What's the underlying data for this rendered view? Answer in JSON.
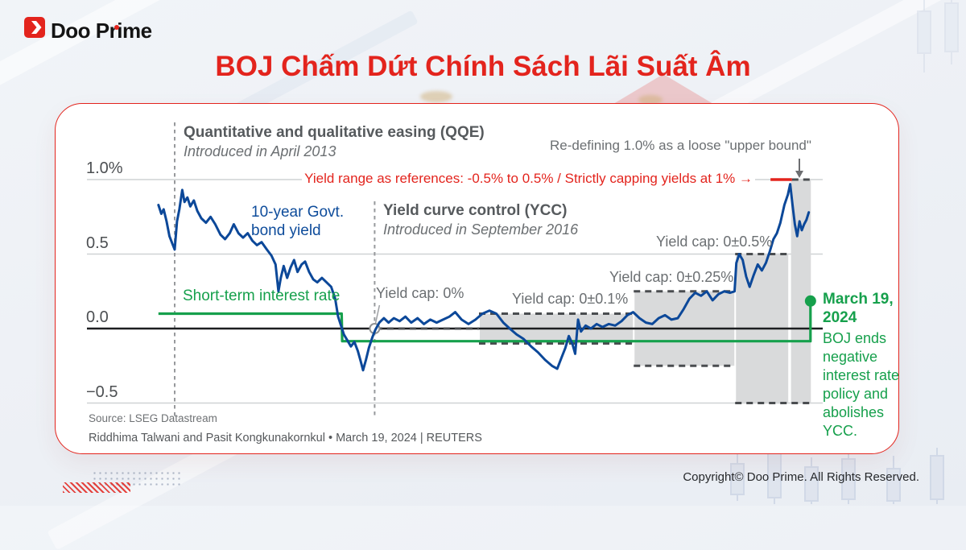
{
  "brand": {
    "logo_text": "Doo Prime",
    "accent_red": "#e3241d"
  },
  "title": "BOJ Chấm Dứt Chính Sách Lãi Suất Âm",
  "footer": {
    "copyright": "Copyright© Doo Prime. All Rights Reserved."
  },
  "chart_data": {
    "type": "line",
    "title": "",
    "ylabel": "%",
    "ylim": [
      -0.72,
      1.08
    ],
    "x_range_years": [
      2012.95,
      2024.3
    ],
    "grid": "horizontal",
    "legend_position": "inline-labels",
    "yticks": [
      {
        "label": "1.0%",
        "value": 1.0
      },
      {
        "label": "0.5",
        "value": 0.5
      },
      {
        "label": "0.0",
        "value": 0.0
      },
      {
        "label": "−0.5",
        "value": -0.5
      }
    ],
    "events": [
      {
        "title": "Quantitative and qualitative easing (QQE)",
        "subtitle": "Introduced in April 2013",
        "year": 2013.25
      },
      {
        "title": "Yield curve control (YCC)",
        "subtitle": "Introduced in September 2016",
        "year": 2016.7
      }
    ],
    "bands": [
      {
        "label": "Yield cap: 0%",
        "from_year": 2016.72,
        "to_year": 2018.5,
        "top": 0,
        "bottom": 0,
        "fill": false
      },
      {
        "label": "Yield cap: 0±0.1%",
        "from_year": 2018.5,
        "to_year": 2021.17,
        "top": 0.1,
        "bottom": -0.1,
        "fill": true
      },
      {
        "label": "Yield cap: 0±0.25%",
        "from_year": 2021.17,
        "to_year": 2022.92,
        "top": 0.25,
        "bottom": -0.25,
        "fill": true
      },
      {
        "label": "Yield cap: 0±0.5%",
        "from_year": 2022.92,
        "to_year": 2023.85,
        "top": 0.5,
        "bottom": -0.5,
        "fill": true
      },
      {
        "label": "",
        "from_year": 2023.87,
        "to_year": 2024.24,
        "top": 1.0,
        "bottom": -0.5,
        "fill": true
      }
    ],
    "cap_dashes": [
      {
        "y": 0,
        "from": 2016.72,
        "to": 2018.5
      },
      {
        "y": 0.1,
        "from": 2018.5,
        "to": 2021.17
      },
      {
        "y": -0.1,
        "from": 2018.5,
        "to": 2021.17
      },
      {
        "y": 0.25,
        "from": 2021.17,
        "to": 2022.92
      },
      {
        "y": -0.25,
        "from": 2021.17,
        "to": 2022.92
      },
      {
        "y": 0.5,
        "from": 2022.92,
        "to": 2023.85
      },
      {
        "y": -0.5,
        "from": 2022.92,
        "to": 2024.24
      },
      {
        "y": 1.0,
        "from": 2023.9,
        "to": 2024.24
      }
    ],
    "strict_cap_line": {
      "y": 1.0,
      "from": 2023.53,
      "to": 2023.9,
      "color": "#e3241d"
    },
    "markers": {
      "ycc_zero_circle": {
        "year": 2016.7,
        "pct": 0.0
      }
    },
    "series": [
      {
        "name": "10-year Govt. bond yield",
        "label": "10-year Govt.\nbond yield",
        "color": "#0c4899",
        "points": [
          [
            2012.97,
            0.83
          ],
          [
            2013.02,
            0.77
          ],
          [
            2013.06,
            0.8
          ],
          [
            2013.11,
            0.72
          ],
          [
            2013.16,
            0.62
          ],
          [
            2013.21,
            0.57
          ],
          [
            2013.25,
            0.53
          ],
          [
            2013.29,
            0.72
          ],
          [
            2013.33,
            0.8
          ],
          [
            2013.38,
            0.93
          ],
          [
            2013.42,
            0.85
          ],
          [
            2013.47,
            0.88
          ],
          [
            2013.52,
            0.82
          ],
          [
            2013.58,
            0.86
          ],
          [
            2013.64,
            0.79
          ],
          [
            2013.71,
            0.74
          ],
          [
            2013.79,
            0.71
          ],
          [
            2013.87,
            0.75
          ],
          [
            2013.95,
            0.7
          ],
          [
            2014.04,
            0.63
          ],
          [
            2014.12,
            0.6
          ],
          [
            2014.2,
            0.64
          ],
          [
            2014.27,
            0.7
          ],
          [
            2014.35,
            0.64
          ],
          [
            2014.43,
            0.61
          ],
          [
            2014.51,
            0.64
          ],
          [
            2014.59,
            0.59
          ],
          [
            2014.67,
            0.56
          ],
          [
            2014.75,
            0.58
          ],
          [
            2014.84,
            0.53
          ],
          [
            2014.92,
            0.49
          ],
          [
            2014.99,
            0.43
          ],
          [
            2015.04,
            0.25
          ],
          [
            2015.08,
            0.34
          ],
          [
            2015.13,
            0.42
          ],
          [
            2015.19,
            0.34
          ],
          [
            2015.25,
            0.41
          ],
          [
            2015.31,
            0.46
          ],
          [
            2015.37,
            0.38
          ],
          [
            2015.44,
            0.43
          ],
          [
            2015.5,
            0.45
          ],
          [
            2015.57,
            0.38
          ],
          [
            2015.64,
            0.33
          ],
          [
            2015.71,
            0.31
          ],
          [
            2015.79,
            0.34
          ],
          [
            2015.87,
            0.31
          ],
          [
            2015.95,
            0.28
          ],
          [
            2016.02,
            0.2
          ],
          [
            2016.07,
            0.08
          ],
          [
            2016.12,
            0.02
          ],
          [
            2016.17,
            -0.04
          ],
          [
            2016.23,
            -0.08
          ],
          [
            2016.29,
            -0.12
          ],
          [
            2016.35,
            -0.09
          ],
          [
            2016.41,
            -0.15
          ],
          [
            2016.46,
            -0.22
          ],
          [
            2016.5,
            -0.28
          ],
          [
            2016.55,
            -0.21
          ],
          [
            2016.6,
            -0.13
          ],
          [
            2016.66,
            -0.06
          ],
          [
            2016.71,
            -0.01
          ],
          [
            2016.78,
            0.04
          ],
          [
            2016.86,
            0.07
          ],
          [
            2016.94,
            0.04
          ],
          [
            2017.03,
            0.07
          ],
          [
            2017.13,
            0.05
          ],
          [
            2017.23,
            0.08
          ],
          [
            2017.33,
            0.04
          ],
          [
            2017.44,
            0.07
          ],
          [
            2017.55,
            0.03
          ],
          [
            2017.66,
            0.06
          ],
          [
            2017.77,
            0.04
          ],
          [
            2017.88,
            0.06
          ],
          [
            2017.99,
            0.08
          ],
          [
            2018.09,
            0.11
          ],
          [
            2018.2,
            0.06
          ],
          [
            2018.32,
            0.03
          ],
          [
            2018.44,
            0.06
          ],
          [
            2018.56,
            0.1
          ],
          [
            2018.68,
            0.12
          ],
          [
            2018.8,
            0.1
          ],
          [
            2018.92,
            0.04
          ],
          [
            2019.03,
            0.0
          ],
          [
            2019.15,
            -0.04
          ],
          [
            2019.27,
            -0.07
          ],
          [
            2019.4,
            -0.12
          ],
          [
            2019.52,
            -0.16
          ],
          [
            2019.64,
            -0.21
          ],
          [
            2019.76,
            -0.25
          ],
          [
            2019.85,
            -0.27
          ],
          [
            2019.92,
            -0.2
          ],
          [
            2019.99,
            -0.13
          ],
          [
            2020.05,
            -0.05
          ],
          [
            2020.11,
            -0.1
          ],
          [
            2020.16,
            -0.17
          ],
          [
            2020.21,
            0.06
          ],
          [
            2020.26,
            -0.02
          ],
          [
            2020.34,
            0.02
          ],
          [
            2020.43,
            0.0
          ],
          [
            2020.53,
            0.03
          ],
          [
            2020.63,
            0.01
          ],
          [
            2020.74,
            0.03
          ],
          [
            2020.85,
            0.02
          ],
          [
            2020.96,
            0.05
          ],
          [
            2021.06,
            0.09
          ],
          [
            2021.16,
            0.11
          ],
          [
            2021.27,
            0.07
          ],
          [
            2021.38,
            0.04
          ],
          [
            2021.49,
            0.03
          ],
          [
            2021.6,
            0.07
          ],
          [
            2021.71,
            0.09
          ],
          [
            2021.82,
            0.06
          ],
          [
            2021.93,
            0.07
          ],
          [
            2022.03,
            0.13
          ],
          [
            2022.13,
            0.2
          ],
          [
            2022.23,
            0.24
          ],
          [
            2022.33,
            0.22
          ],
          [
            2022.43,
            0.25
          ],
          [
            2022.53,
            0.19
          ],
          [
            2022.63,
            0.23
          ],
          [
            2022.73,
            0.25
          ],
          [
            2022.83,
            0.24
          ],
          [
            2022.91,
            0.25
          ],
          [
            2022.94,
            0.44
          ],
          [
            2022.99,
            0.5
          ],
          [
            2023.05,
            0.46
          ],
          [
            2023.11,
            0.35
          ],
          [
            2023.17,
            0.28
          ],
          [
            2023.24,
            0.36
          ],
          [
            2023.31,
            0.43
          ],
          [
            2023.38,
            0.39
          ],
          [
            2023.45,
            0.44
          ],
          [
            2023.52,
            0.52
          ],
          [
            2023.58,
            0.6
          ],
          [
            2023.64,
            0.64
          ],
          [
            2023.7,
            0.71
          ],
          [
            2023.77,
            0.83
          ],
          [
            2023.83,
            0.9
          ],
          [
            2023.87,
            0.97
          ],
          [
            2023.91,
            0.83
          ],
          [
            2023.95,
            0.7
          ],
          [
            2023.99,
            0.62
          ],
          [
            2024.03,
            0.72
          ],
          [
            2024.07,
            0.66
          ],
          [
            2024.11,
            0.7
          ],
          [
            2024.15,
            0.73
          ],
          [
            2024.19,
            0.78
          ]
        ]
      },
      {
        "name": "Short-term interest rate",
        "label": "Short-term interest rate",
        "color": "#16a04c",
        "points": [
          [
            2012.97,
            0.1
          ],
          [
            2016.13,
            0.1
          ],
          [
            2016.14,
            -0.085
          ],
          [
            2024.22,
            -0.085
          ],
          [
            2024.22,
            0.185
          ]
        ],
        "end_dot": [
          2024.22,
          0.185
        ]
      }
    ],
    "annotations": {
      "strict_note": "Yield range as references: -0.5% to 0.5% / Strictly capping yields at 1% →",
      "upper_bound_note": "Re-defining 1.0% as a loose \"upper bound\"",
      "march_title": "March 19, 2024",
      "march_body": "BOJ ends negative interest rate policy and abolishes YCC."
    },
    "source_line1": "Source: LSEG Datastream",
    "source_line2": "Riddhima Talwani and Pasit Kongkunakornkul • March 19, 2024 | REUTERS"
  }
}
